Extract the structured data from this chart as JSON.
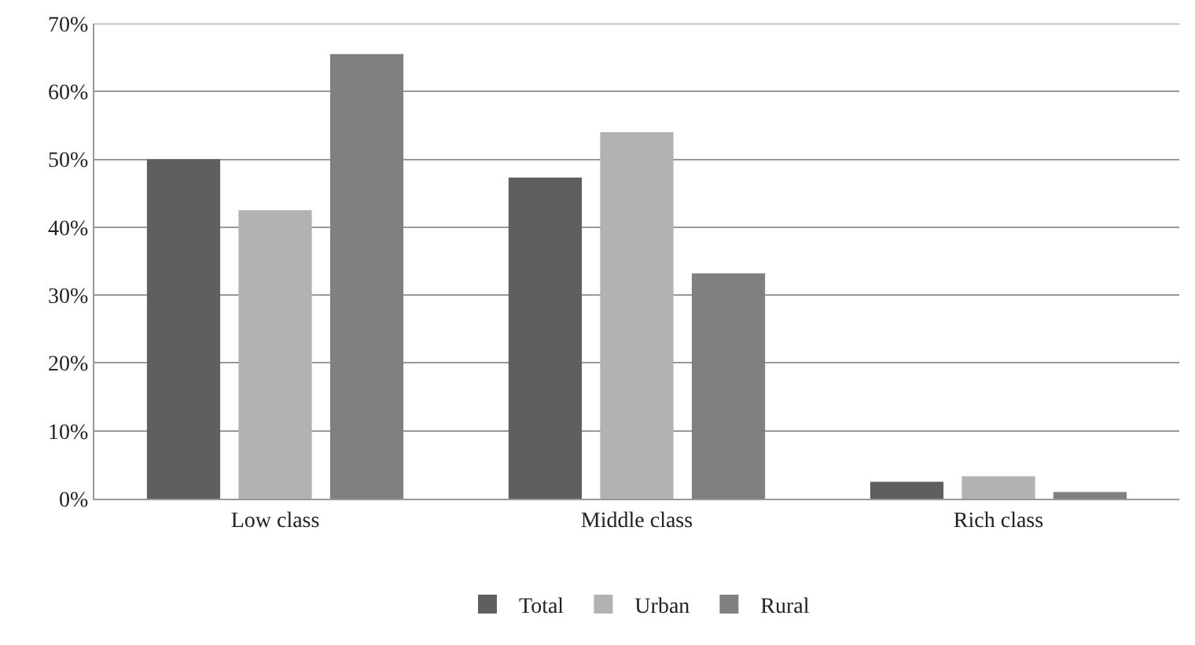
{
  "chart_data": {
    "type": "bar",
    "categories": [
      "Low class",
      "Middle class",
      "Rich class"
    ],
    "series": [
      {
        "name": "Total",
        "color": "#5f5f5f",
        "values": [
          50,
          47.3,
          2.5
        ]
      },
      {
        "name": "Urban",
        "color": "#b2b2b2",
        "values": [
          42.5,
          54,
          3.3
        ]
      },
      {
        "name": "Rural",
        "color": "#808080",
        "values": [
          65.5,
          33.2,
          1.0
        ]
      }
    ],
    "ylim": [
      0,
      70
    ],
    "yticks": [
      {
        "value": 0,
        "label": "0%"
      },
      {
        "value": 10,
        "label": "10%"
      },
      {
        "value": 20,
        "label": "20%"
      },
      {
        "value": 30,
        "label": "30%"
      },
      {
        "value": 40,
        "label": "40%"
      },
      {
        "value": 50,
        "label": "50%"
      },
      {
        "value": 60,
        "label": "60%"
      },
      {
        "value": 70,
        "label": "70%"
      }
    ],
    "grid": "y",
    "legend": "bottom"
  }
}
